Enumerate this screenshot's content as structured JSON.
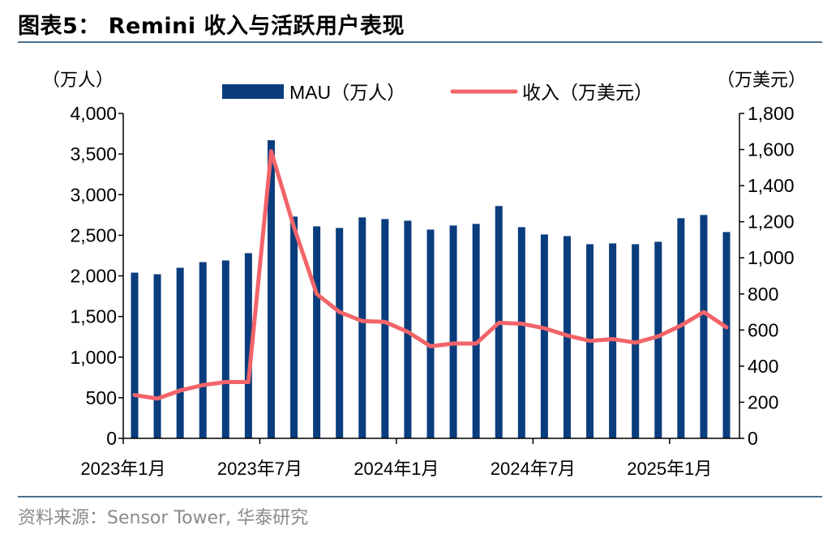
{
  "title": "图表5： Remini 收入与活跃用户表现",
  "source": "资料来源：Sensor Tower, 华泰研究",
  "chart_data": {
    "type": "bar+line",
    "categories": [
      "2023-01",
      "2023-02",
      "2023-03",
      "2023-04",
      "2023-05",
      "2023-06",
      "2023-07",
      "2023-08",
      "2023-09",
      "2023-10",
      "2023-11",
      "2023-12",
      "2024-01",
      "2024-02",
      "2024-03",
      "2024-04",
      "2024-05",
      "2024-06",
      "2024-07",
      "2024-08",
      "2024-09",
      "2024-10",
      "2024-11",
      "2024-12",
      "2025-01",
      "2025-02",
      "2025-03"
    ],
    "x_tick_labels": [
      "2023年1月",
      "2023年7月",
      "2024年1月",
      "2024年7月",
      "2025年1月"
    ],
    "x_tick_index": [
      0,
      6,
      12,
      18,
      24
    ],
    "left_unit": "（万人）",
    "right_unit": "（万美元）",
    "left_ticks": [
      "0",
      "500",
      "1,000",
      "1,500",
      "2,000",
      "2,500",
      "3,000",
      "3,500",
      "4,000"
    ],
    "right_ticks": [
      "0",
      "200",
      "400",
      "600",
      "800",
      "1,000",
      "1,200",
      "1,400",
      "1,600",
      "1,800"
    ],
    "left_ylim": [
      0,
      4000
    ],
    "right_ylim": [
      0,
      1800
    ],
    "series": [
      {
        "name": "MAU（万人）",
        "type": "bar",
        "axis": "left",
        "color": "#0a3d7d",
        "values": [
          2040,
          2020,
          2100,
          2170,
          2190,
          2280,
          3670,
          2730,
          2610,
          2590,
          2720,
          2700,
          2680,
          2570,
          2620,
          2640,
          2860,
          2600,
          2510,
          2490,
          2390,
          2400,
          2390,
          2420,
          2710,
          2750,
          2540
        ]
      },
      {
        "name": "收入（万美元）",
        "type": "line",
        "axis": "right",
        "color": "#f26469",
        "values": [
          240,
          220,
          265,
          295,
          312,
          312,
          1590,
          1170,
          800,
          700,
          650,
          645,
          590,
          510,
          525,
          525,
          640,
          635,
          610,
          570,
          540,
          550,
          530,
          565,
          625,
          700,
          615
        ]
      }
    ],
    "legend_position": "top-center",
    "grid": false
  }
}
